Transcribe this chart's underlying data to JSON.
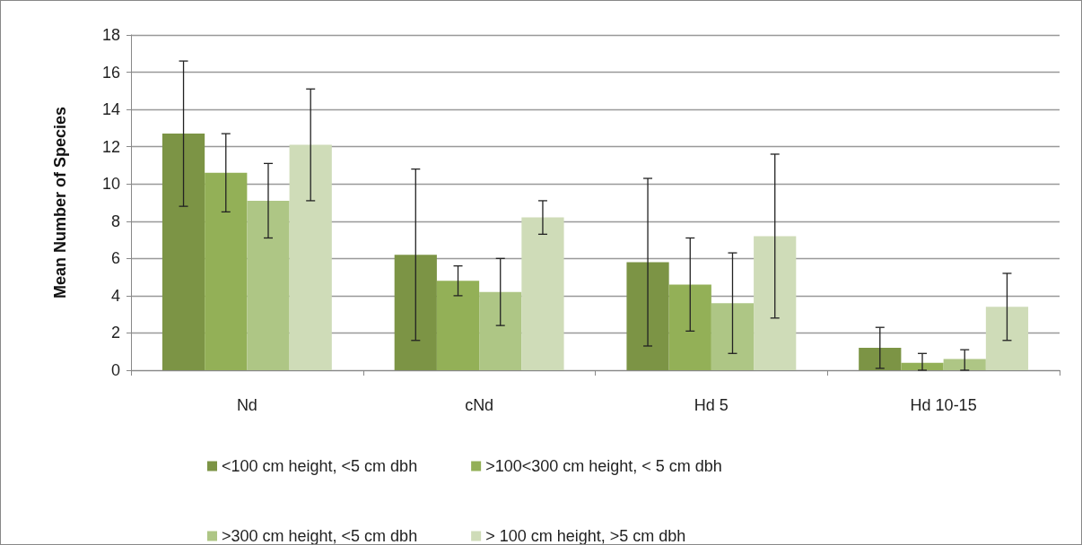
{
  "chart_data": {
    "type": "bar",
    "ylabel": "Mean Number of Species",
    "categories": [
      "Nd",
      "cNd",
      "Hd 5",
      "Hd 10-15"
    ],
    "series": [
      {
        "name": "<100 cm height, <5 cm dbh",
        "color": "#7c9445",
        "values": [
          12.7,
          6.2,
          5.8,
          1.2
        ],
        "errors": [
          3.9,
          4.6,
          4.5,
          1.1
        ]
      },
      {
        "name": ">100<300 cm height, < 5 cm dbh",
        "color": "#93b057",
        "values": [
          10.6,
          4.8,
          4.6,
          0.4
        ],
        "errors": [
          2.1,
          0.8,
          2.5,
          [
            0,
            0.9
          ]
        ]
      },
      {
        "name": ">300 cm height, <5 cm dbh",
        "color": "#aec685",
        "values": [
          9.1,
          4.2,
          3.6,
          0.6
        ],
        "errors": [
          2.0,
          1.8,
          2.7,
          [
            0,
            1.1
          ]
        ]
      },
      {
        "name": "> 100 cm height, >5 cm dbh",
        "color": "#cfdcb8",
        "values": [
          12.1,
          8.2,
          7.2,
          3.4
        ],
        "errors": [
          3.0,
          0.9,
          4.4,
          1.8
        ]
      }
    ],
    "ylim": [
      0,
      18
    ],
    "yticks": [
      0,
      2,
      4,
      6,
      8,
      10,
      12,
      14,
      16,
      18
    ],
    "grid": "y",
    "legend": "bottom"
  }
}
